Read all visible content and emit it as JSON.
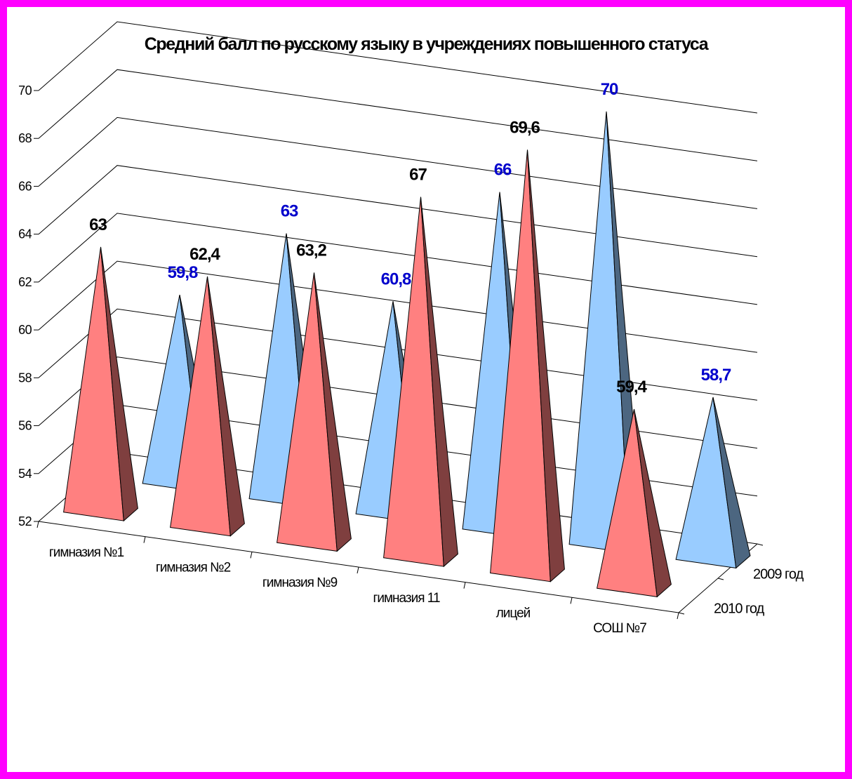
{
  "chart_data": {
    "type": "bar",
    "bar_shape": "pyramid",
    "projection": "3d",
    "title": "Средний балл по русскому языку в учреждениях повышенного статуса",
    "categories": [
      "гимназия №1",
      "гимназия №2",
      "гимназия №9",
      "гимназия 11",
      "лицей",
      "СОШ №7"
    ],
    "series": [
      {
        "name": "2010 год",
        "values": [
          63,
          62.4,
          63.2,
          67,
          69.6,
          59.4
        ],
        "labels": [
          "63",
          "62,4",
          "63,2",
          "67",
          "69,6",
          "59,4"
        ],
        "color": "#ff8080",
        "label_color": "#000000"
      },
      {
        "name": "2009 год",
        "values": [
          59.8,
          63,
          60.8,
          66,
          70,
          58.7
        ],
        "labels": [
          "59,8",
          "63",
          "60,8",
          "66",
          "70",
          "58,7"
        ],
        "color": "#99ccff",
        "label_color": "#0000cc"
      }
    ],
    "ylim": [
      52,
      70
    ],
    "yticks": [
      52,
      54,
      56,
      58,
      60,
      62,
      64,
      66,
      68,
      70
    ],
    "grid": true,
    "legend": "none",
    "data_labels": true
  },
  "colors": {
    "frame_border": "#ff00ff",
    "background": "#ffffff",
    "gridline": "#000000",
    "series_2010_side": "#7f3f3f",
    "series_2009_side": "#4c6680"
  }
}
